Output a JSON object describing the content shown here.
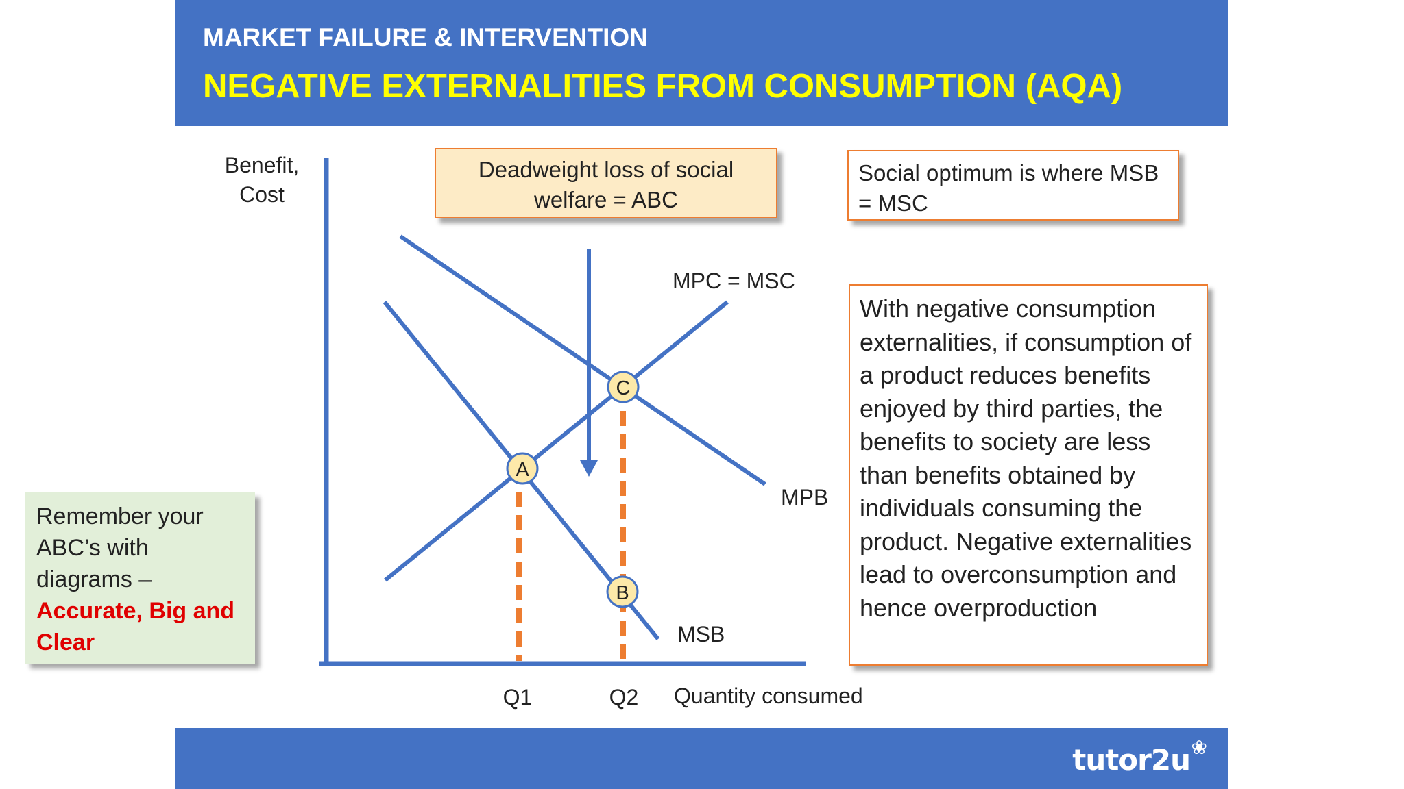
{
  "header": {
    "kicker": "MARKET FAILURE & INTERVENTION",
    "title": "NEGATIVE EXTERNALITIES FROM CONSUMPTION (AQA)"
  },
  "diagram": {
    "y_axis_label_line1": "Benefit,",
    "y_axis_label_line2": "Cost",
    "x_axis_label": "Quantity consumed",
    "q1_label": "Q1",
    "q2_label": "Q2",
    "curve_supply_label": "MPC = MSC",
    "curve_mpb_label": "MPB",
    "curve_msb_label": "MSB",
    "point_a": "A",
    "point_b": "B",
    "point_c": "C",
    "colors": {
      "curve": "#4472c4",
      "dashed": "#ed7d31",
      "point_fill": "#fde9a9"
    }
  },
  "boxes": {
    "deadweight": "Deadweight loss of social welfare = ABC",
    "optimum": "Social optimum is where MSB = MSC",
    "explanation": "With negative consumption externalities, if consumption of a product reduces benefits enjoyed by third parties, the benefits to society are less than benefits obtained by individuals consuming the product. Negative externalities lead to overconsumption and hence overproduction",
    "tip_text": "Remember your ABC’s with diagrams –",
    "tip_emphasis": "Accurate, Big and Clear"
  },
  "footer": {
    "logo": "tutor2u",
    "logo_mark": "❀"
  }
}
